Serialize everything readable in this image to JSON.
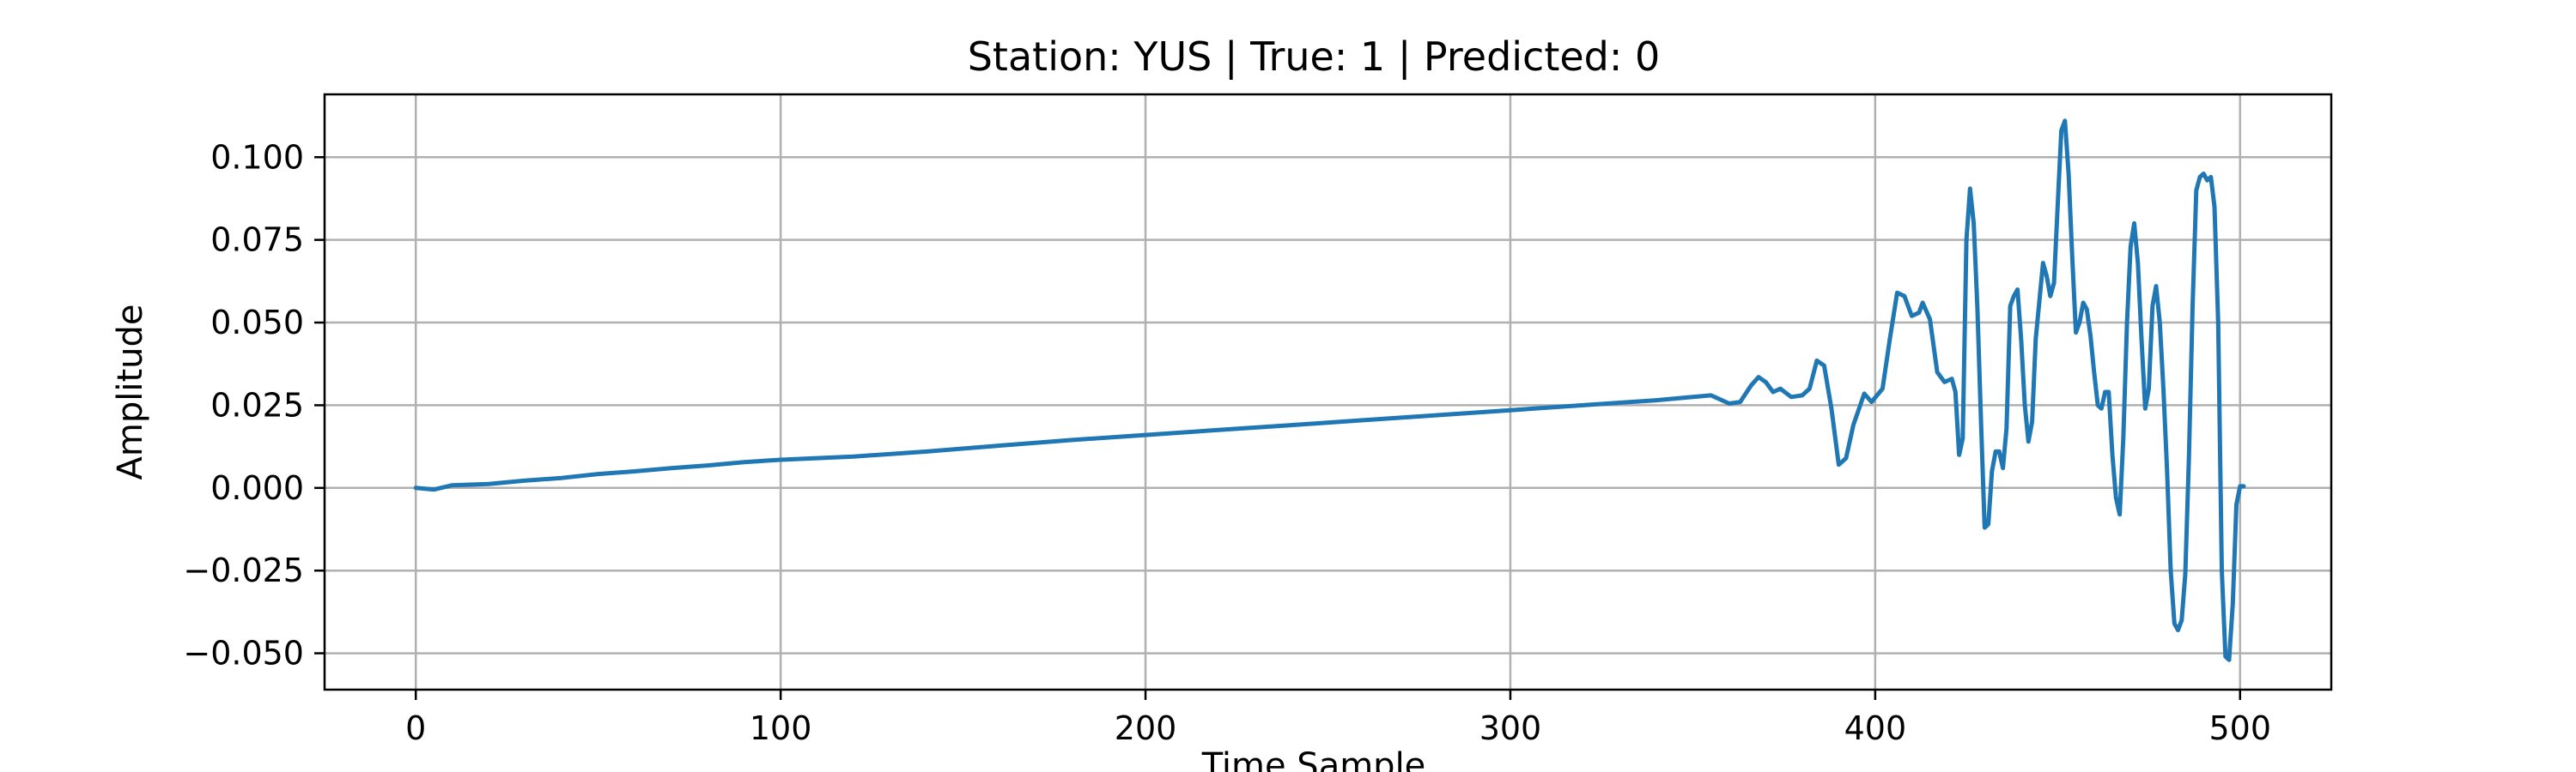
{
  "chart_data": {
    "type": "line",
    "title": "Station: YUS | True: 1 | Predicted: 0",
    "xlabel": "Time Sample",
    "ylabel": "Amplitude",
    "xlim": [
      -25,
      525
    ],
    "ylim": [
      -0.061,
      0.119
    ],
    "xticks": [
      0,
      100,
      200,
      300,
      400,
      500
    ],
    "yticks": [
      -0.05,
      -0.025,
      0.0,
      0.025,
      0.05,
      0.075,
      0.1
    ],
    "ytick_labels": [
      "−0.050",
      "−0.025",
      "0.000",
      "0.025",
      "0.050",
      "0.075",
      "0.100"
    ],
    "xtick_labels": [
      "0",
      "100",
      "200",
      "300",
      "400",
      "500"
    ],
    "grid": true,
    "line_color": "#1f77b4",
    "series": [
      {
        "values_at_points": [
          [
            0,
            0.0
          ],
          [
            5,
            -0.0005
          ],
          [
            10,
            0.0008
          ],
          [
            20,
            0.0012
          ],
          [
            30,
            0.0022
          ],
          [
            40,
            0.003
          ],
          [
            50,
            0.0042
          ],
          [
            60,
            0.005
          ],
          [
            70,
            0.006
          ],
          [
            80,
            0.0068
          ],
          [
            90,
            0.0078
          ],
          [
            100,
            0.0085
          ],
          [
            120,
            0.0095
          ],
          [
            140,
            0.011
          ],
          [
            160,
            0.0128
          ],
          [
            180,
            0.0145
          ],
          [
            200,
            0.016
          ],
          [
            220,
            0.0175
          ],
          [
            240,
            0.019
          ],
          [
            260,
            0.0205
          ],
          [
            280,
            0.022
          ],
          [
            300,
            0.0235
          ],
          [
            320,
            0.025
          ],
          [
            340,
            0.0265
          ],
          [
            350,
            0.0275
          ],
          [
            355,
            0.028
          ],
          [
            360,
            0.0255
          ],
          [
            363,
            0.026
          ],
          [
            366,
            0.031
          ],
          [
            368,
            0.0335
          ],
          [
            370,
            0.032
          ],
          [
            372,
            0.029
          ],
          [
            374,
            0.03
          ],
          [
            377,
            0.0275
          ],
          [
            380,
            0.028
          ],
          [
            382,
            0.03
          ],
          [
            384,
            0.0385
          ],
          [
            386,
            0.037
          ],
          [
            388,
            0.024
          ],
          [
            390,
            0.007
          ],
          [
            392,
            0.009
          ],
          [
            394,
            0.019
          ],
          [
            397,
            0.0285
          ],
          [
            399,
            0.026
          ],
          [
            402,
            0.03
          ],
          [
            404,
            0.045
          ],
          [
            406,
            0.059
          ],
          [
            408,
            0.058
          ],
          [
            410,
            0.052
          ],
          [
            412,
            0.053
          ],
          [
            413,
            0.056
          ],
          [
            415,
            0.051
          ],
          [
            417,
            0.035
          ],
          [
            419,
            0.032
          ],
          [
            421,
            0.033
          ],
          [
            422,
            0.029
          ],
          [
            423,
            0.01
          ],
          [
            424,
            0.015
          ],
          [
            425,
            0.075
          ],
          [
            426,
            0.0905
          ],
          [
            427,
            0.08
          ],
          [
            428,
            0.055
          ],
          [
            429,
            0.02
          ],
          [
            430,
            -0.012
          ],
          [
            431,
            -0.011
          ],
          [
            432,
            0.005
          ],
          [
            433,
            0.011
          ],
          [
            434,
            0.011
          ],
          [
            435,
            0.006
          ],
          [
            436,
            0.018
          ],
          [
            437,
            0.055
          ],
          [
            438,
            0.058
          ],
          [
            439,
            0.06
          ],
          [
            440,
            0.045
          ],
          [
            441,
            0.025
          ],
          [
            442,
            0.014
          ],
          [
            443,
            0.02
          ],
          [
            444,
            0.045
          ],
          [
            446,
            0.068
          ],
          [
            447,
            0.064
          ],
          [
            448,
            0.058
          ],
          [
            449,
            0.062
          ],
          [
            450,
            0.085
          ],
          [
            451,
            0.108
          ],
          [
            452,
            0.111
          ],
          [
            453,
            0.095
          ],
          [
            454,
            0.07
          ],
          [
            455,
            0.047
          ],
          [
            456,
            0.05
          ],
          [
            457,
            0.056
          ],
          [
            458,
            0.054
          ],
          [
            459,
            0.046
          ],
          [
            460,
            0.035
          ],
          [
            461,
            0.025
          ],
          [
            462,
            0.024
          ],
          [
            463,
            0.029
          ],
          [
            464,
            0.029
          ],
          [
            465,
            0.01
          ],
          [
            466,
            -0.003
          ],
          [
            467,
            -0.008
          ],
          [
            468,
            0.015
          ],
          [
            469,
            0.05
          ],
          [
            470,
            0.073
          ],
          [
            471,
            0.08
          ],
          [
            472,
            0.068
          ],
          [
            473,
            0.045
          ],
          [
            474,
            0.024
          ],
          [
            475,
            0.03
          ],
          [
            476,
            0.055
          ],
          [
            477,
            0.061
          ],
          [
            478,
            0.05
          ],
          [
            479,
            0.03
          ],
          [
            480,
            0.005
          ],
          [
            481,
            -0.025
          ],
          [
            482,
            -0.041
          ],
          [
            483,
            -0.043
          ],
          [
            484,
            -0.04
          ],
          [
            485,
            -0.026
          ],
          [
            486,
            0.01
          ],
          [
            487,
            0.055
          ],
          [
            488,
            0.09
          ],
          [
            489,
            0.094
          ],
          [
            490,
            0.095
          ],
          [
            491,
            0.093
          ],
          [
            492,
            0.094
          ],
          [
            493,
            0.085
          ],
          [
            494,
            0.05
          ],
          [
            495,
            -0.025
          ],
          [
            496,
            -0.051
          ],
          [
            497,
            -0.052
          ],
          [
            498,
            -0.035
          ],
          [
            499,
            -0.005
          ],
          [
            500,
            0.0005
          ],
          [
            501,
            0.0005
          ]
        ]
      }
    ]
  }
}
